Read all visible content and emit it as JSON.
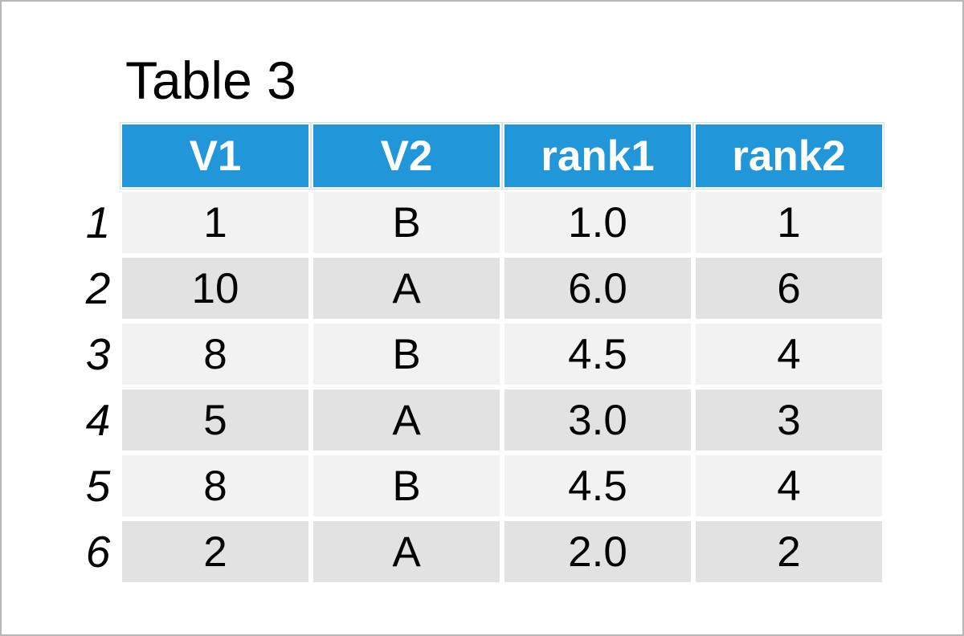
{
  "chart_data": {
    "type": "table",
    "title": "Table 3",
    "columns": [
      "V1",
      "V2",
      "rank1",
      "rank2"
    ],
    "row_labels": [
      "1",
      "2",
      "3",
      "4",
      "5",
      "6"
    ],
    "rows": [
      [
        "1",
        "B",
        "1.0",
        "1"
      ],
      [
        "10",
        "A",
        "6.0",
        "6"
      ],
      [
        "8",
        "B",
        "4.5",
        "4"
      ],
      [
        "5",
        "A",
        "3.0",
        "3"
      ],
      [
        "8",
        "B",
        "4.5",
        "4"
      ],
      [
        "2",
        "A",
        "2.0",
        "2"
      ]
    ],
    "layout_hints": {
      "zebra_striping": true,
      "row_labels_italic": true,
      "header_position": "top"
    }
  },
  "colors": {
    "header_background": "#2196d8",
    "header_text": "#ffffff",
    "header_outline": "#cfe4f3",
    "row_odd_background": "#f2f2f2",
    "row_even_background": "#e2e2e2",
    "cell_text": "#000000",
    "page_background": "#ffffff",
    "page_border": "#b7b7b7"
  }
}
